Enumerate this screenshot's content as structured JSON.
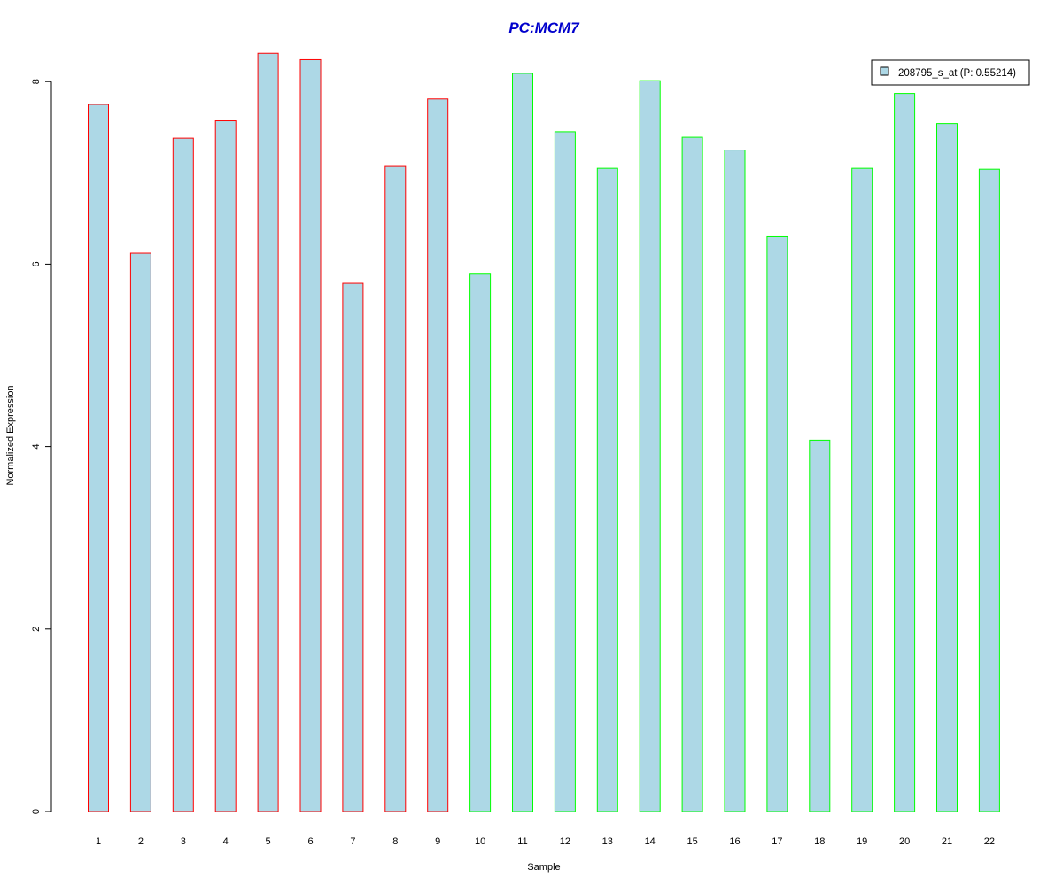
{
  "chart_data": {
    "type": "bar",
    "title": "PC:MCM7",
    "xlabel": "Sample",
    "ylabel": "Normalized Expression",
    "categories": [
      "1",
      "2",
      "3",
      "4",
      "5",
      "6",
      "7",
      "8",
      "9",
      "10",
      "11",
      "12",
      "13",
      "14",
      "15",
      "16",
      "17",
      "18",
      "19",
      "20",
      "21",
      "22"
    ],
    "series": [
      {
        "name": "208795_s_at (P: 0.55214)",
        "values": [
          7.75,
          6.12,
          7.38,
          7.57,
          8.31,
          8.24,
          5.79,
          7.07,
          7.81,
          5.89,
          8.09,
          7.45,
          7.05,
          8.01,
          7.39,
          7.25,
          6.3,
          4.07,
          7.05,
          7.87,
          7.54,
          7.04
        ]
      }
    ],
    "group_of_bar": [
      "a",
      "a",
      "a",
      "a",
      "a",
      "a",
      "a",
      "a",
      "a",
      "b",
      "b",
      "b",
      "b",
      "b",
      "b",
      "b",
      "b",
      "b",
      "b",
      "b",
      "b",
      "b"
    ],
    "yticks": [
      0,
      2,
      4,
      6,
      8
    ],
    "ylim": [
      0,
      8.35
    ],
    "legend_position": "top-right",
    "grid": false
  },
  "colors": {
    "title": "#0000cc",
    "bar_fill": "#add8e6",
    "group_a_border": "#ff0000",
    "group_b_border": "#00ff00",
    "axis": "#000000"
  }
}
